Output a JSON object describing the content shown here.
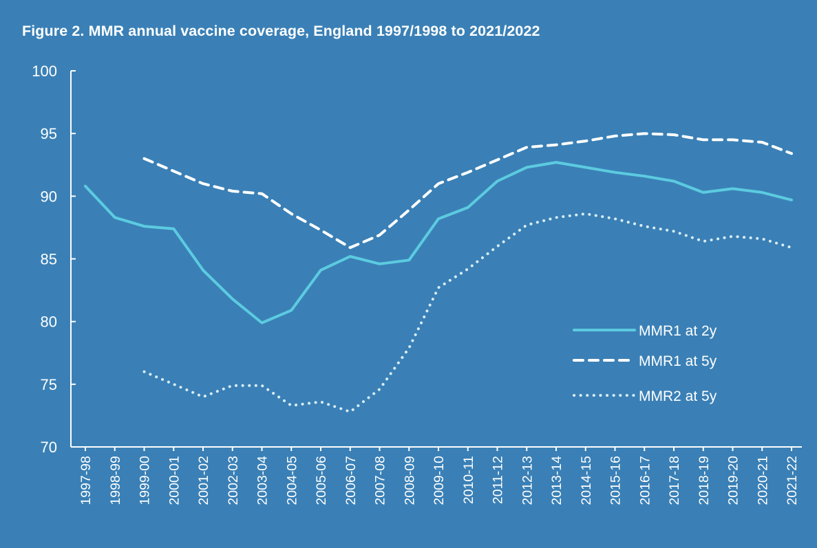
{
  "chart_data": {
    "type": "line",
    "title": "Figure 2. MMR annual vaccine coverage, England 1997/1998 to 2021/2022",
    "xlabel": "",
    "ylabel": "",
    "ylim": [
      70,
      100
    ],
    "yticks": [
      70,
      75,
      80,
      85,
      90,
      95,
      100
    ],
    "grid": false,
    "legend_position": "lower-right",
    "categories": [
      "1997-98",
      "1998-99",
      "1999-00",
      "2000-01",
      "2001-02",
      "2002-03",
      "2003-04",
      "2004-05",
      "2005-06",
      "2006-07",
      "2007-08",
      "2008-09",
      "2009-10",
      "2010-11",
      "2011-12",
      "2012-13",
      "2013-14",
      "2014-15",
      "2015-16",
      "2016-17",
      "2017-18",
      "2018-19",
      "2019-20",
      "2020-21",
      "2021-22"
    ],
    "series": [
      {
        "name": "MMR1 at 2y",
        "style": "solid",
        "color": "#5ccbe0",
        "values": [
          90.8,
          88.3,
          87.6,
          87.4,
          84.1,
          81.8,
          79.9,
          80.9,
          84.1,
          85.2,
          84.6,
          84.9,
          88.2,
          89.1,
          91.2,
          92.3,
          92.7,
          92.3,
          91.9,
          91.6,
          91.2,
          90.3,
          90.6,
          90.3,
          89.7
        ]
      },
      {
        "name": "MMR1 at 5y",
        "style": "dashed",
        "color": "#ffffff",
        "values": [
          null,
          null,
          93.0,
          92.0,
          91.0,
          90.4,
          90.2,
          88.6,
          87.3,
          85.9,
          86.9,
          88.9,
          91.0,
          91.9,
          92.9,
          93.9,
          94.1,
          94.4,
          94.8,
          95.0,
          94.9,
          94.5,
          94.5,
          94.3,
          93.4
        ]
      },
      {
        "name": "MMR2 at 5y",
        "style": "dotted",
        "color": "#d9eef7",
        "values": [
          null,
          null,
          76.0,
          75.0,
          74.0,
          74.9,
          74.9,
          73.3,
          73.6,
          72.8,
          74.6,
          77.9,
          82.7,
          84.2,
          86.0,
          87.7,
          88.3,
          88.6,
          88.2,
          87.6,
          87.2,
          86.4,
          86.8,
          86.6,
          85.9
        ]
      }
    ]
  },
  "colors": {
    "background": "#3a80b6",
    "axis": "#ffffff"
  }
}
